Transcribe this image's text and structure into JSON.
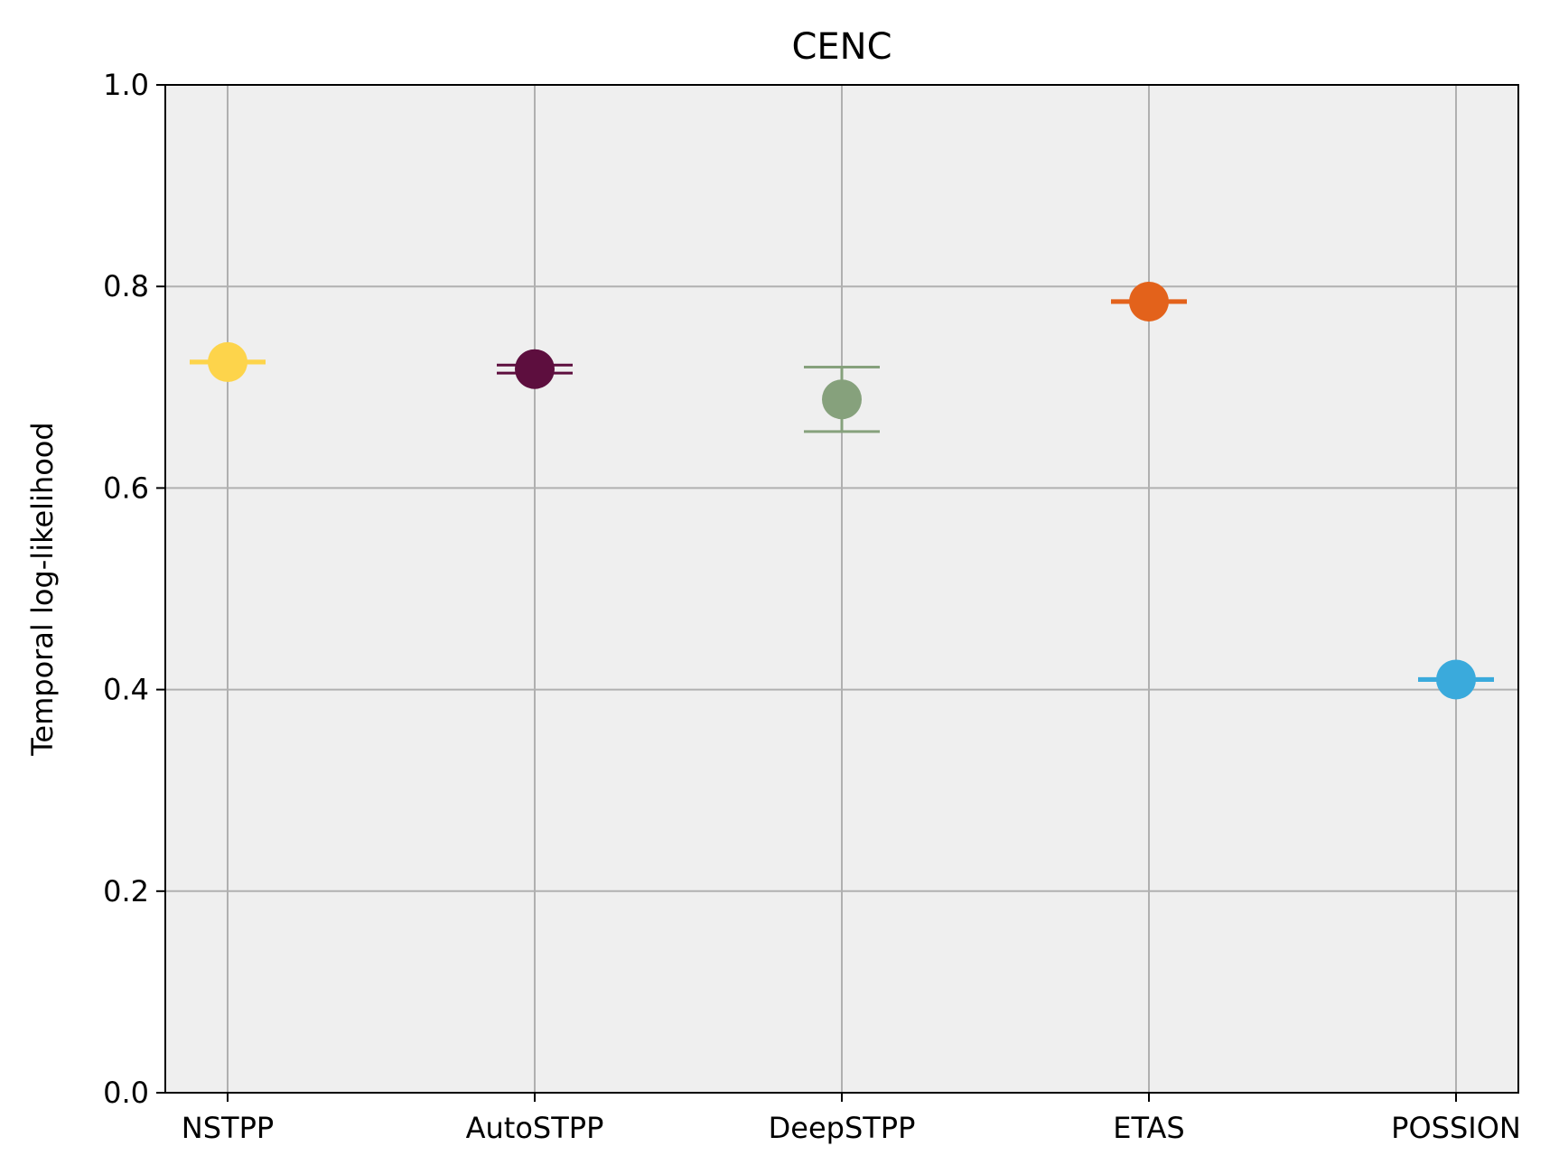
{
  "chart_data": {
    "type": "scatter",
    "title": "CENC",
    "xlabel": "",
    "ylabel": "Temporal log-likelihood",
    "ylim": [
      0.0,
      1.0
    ],
    "yticks": [
      "0.0",
      "0.2",
      "0.4",
      "0.6",
      "0.8",
      "1.0"
    ],
    "grid": true,
    "plot_background": "#efefef",
    "grid_color": "#b0b0b0",
    "categories": [
      "NSTPP",
      "AutoSTPP",
      "DeepSTPP",
      "ETAS",
      "POSSION"
    ],
    "points": [
      {
        "category": "NSTPP",
        "value": 0.725,
        "error": 0.001,
        "color": "#fdd44b"
      },
      {
        "category": "AutoSTPP",
        "value": 0.718,
        "error": 0.004,
        "color": "#5d0e3e"
      },
      {
        "category": "DeepSTPP",
        "value": 0.688,
        "error": 0.032,
        "color": "#86a17c"
      },
      {
        "category": "ETAS",
        "value": 0.785,
        "error": 0.001,
        "color": "#e3621b"
      },
      {
        "category": "POSSION",
        "value": 0.41,
        "error": 0.001,
        "color": "#3aaadc"
      }
    ]
  }
}
